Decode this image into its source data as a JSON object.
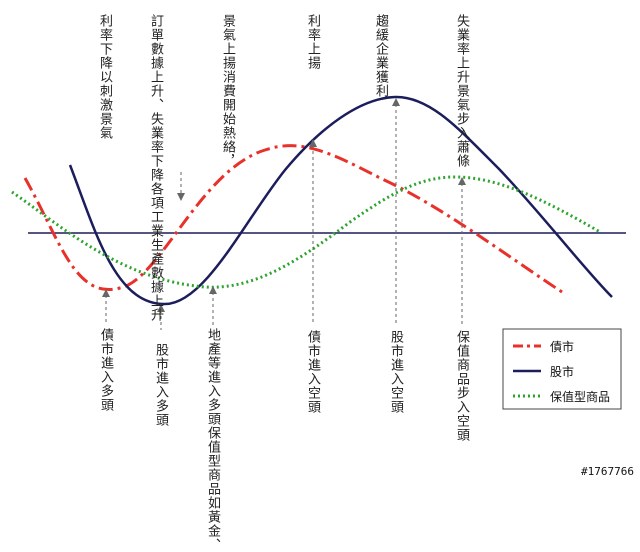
{
  "diagram": {
    "top_annotations": [
      "利率下降以刺激景氣",
      "訂單數據上升、失業率下降各項工業生產數據上升",
      "景氣上揚消費開始熱絡，",
      "利率上揚",
      "趨緩企業獲利",
      "失業率上升景氣步入蕭條"
    ],
    "bottom_annotations": [
      "債市進入多頭",
      "股市進入多頭",
      "地產等進入多頭保值型商品如黃金、",
      "債市進入空頭",
      "股市進入空頭",
      "保值商品步入空頭"
    ],
    "legend": [
      {
        "label": "債市",
        "color": "#e8312b",
        "style": "dashdot"
      },
      {
        "label": "股市",
        "color": "#1b1d5c",
        "style": "solid"
      },
      {
        "label": "保值型商品",
        "color": "#2ea32e",
        "style": "dotted"
      }
    ],
    "watermark": "#1767766"
  }
}
